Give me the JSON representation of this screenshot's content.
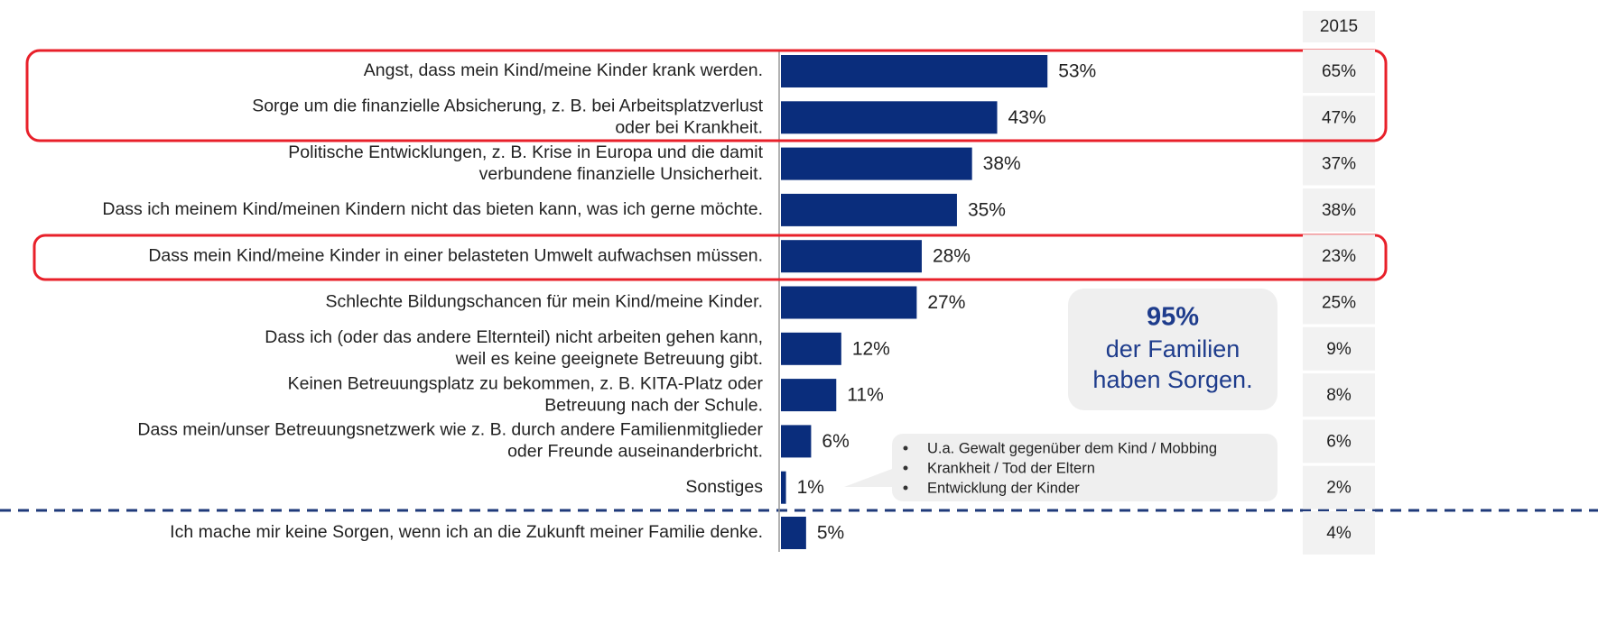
{
  "chart_data": {
    "type": "bar",
    "orientation": "horizontal",
    "color": "#0a2d7c",
    "categories": [
      [
        "Angst, dass mein Kind/meine Kinder krank werden."
      ],
      [
        "Sorge um die finanzielle Absicherung, z. B. bei Arbeitsplatzverlust",
        "oder bei Krankheit."
      ],
      [
        "Politische Entwicklungen, z. B. Krise in Europa und die damit",
        "verbundene finanzielle Unsicherheit."
      ],
      [
        "Dass ich meinem Kind/meinen Kindern nicht das bieten kann, was ich gerne möchte."
      ],
      [
        "Dass mein Kind/meine Kinder in einer belasteten Umwelt aufwachsen müssen."
      ],
      [
        "Schlechte Bildungschancen für mein Kind/meine Kinder."
      ],
      [
        "Dass ich (oder das andere Elternteil) nicht arbeiten gehen kann,",
        "weil es keine geeignete Betreuung gibt."
      ],
      [
        "Keinen Betreuungsplatz zu bekommen, z. B. KITA-Platz oder",
        "Betreuung nach der Schule."
      ],
      [
        "Dass mein/unser Betreuungsnetzwerk wie z. B. durch andere Familienmitglieder",
        "oder Freunde auseinanderbricht."
      ],
      [
        "Sonstiges"
      ],
      [
        "Ich mache mir keine Sorgen, wenn ich an die Zukunft meiner Familie denke."
      ]
    ],
    "values": [
      53,
      43,
      38,
      35,
      28,
      27,
      12,
      11,
      6,
      1,
      5
    ],
    "value_labels": [
      "53%",
      "43%",
      "38%",
      "35%",
      "28%",
      "27%",
      "12%",
      "11%",
      "6%",
      "1%",
      "5%"
    ],
    "comparison": {
      "title": "2015",
      "values": [
        65,
        47,
        37,
        38,
        23,
        25,
        9,
        8,
        6,
        2,
        4
      ],
      "value_labels": [
        "65%",
        "47%",
        "37%",
        "38%",
        "23%",
        "25%",
        "9%",
        "8%",
        "6%",
        "2%",
        "4%"
      ]
    },
    "annotations": {
      "headline": "95%",
      "lines": [
        "der Familien",
        "haben Sorgen."
      ],
      "bullets": [
        "U.a. Gewalt gegenüber dem Kind / Mobbing",
        "Krankheit / Tod der Eltern",
        "Entwicklung der Kinder"
      ]
    }
  }
}
